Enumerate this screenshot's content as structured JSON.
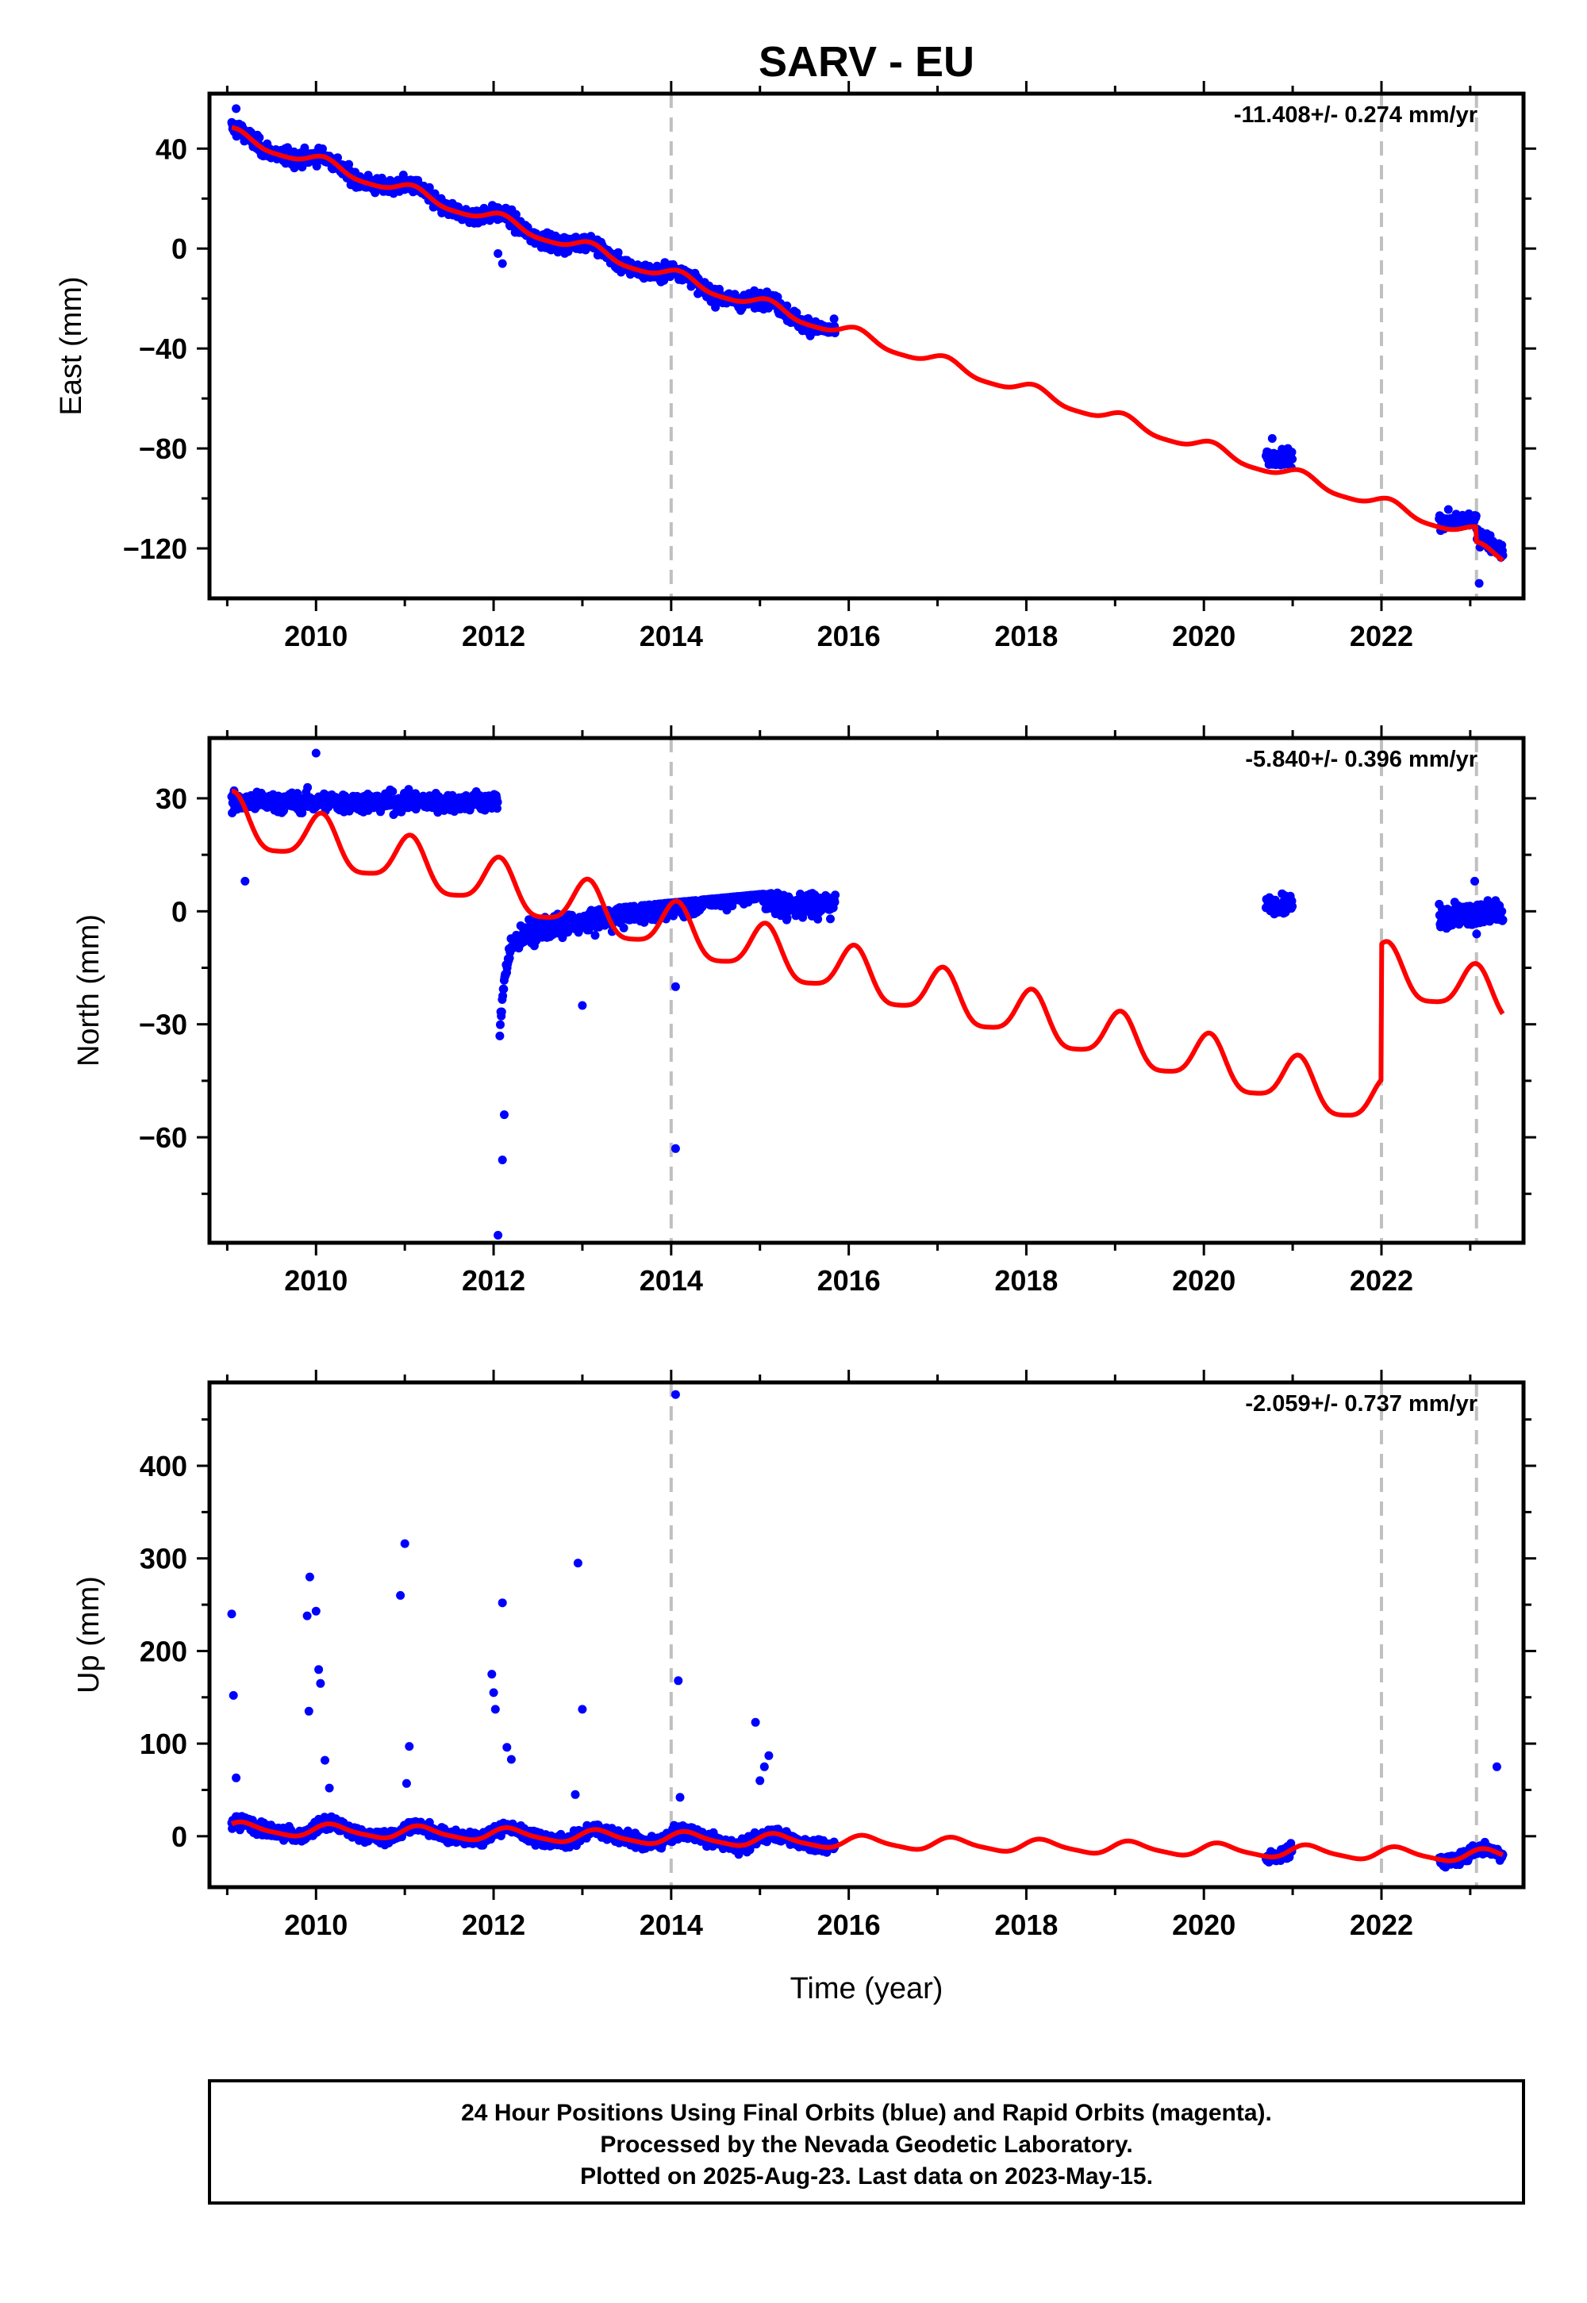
{
  "title": "SARV - EU",
  "xlabel": "Time (year)",
  "footer": {
    "lines": [
      "24 Hour Positions Using Final Orbits (blue) and Rapid Orbits (magenta).",
      "Processed by the Nevada Geodetic Laboratory.",
      "Plotted on 2025-Aug-23. Last data on 2023-May-15."
    ]
  },
  "colors": {
    "data_points": "#0000ff",
    "model_line": "#ff0000",
    "event_lines": "#c0c0c0",
    "frame": "#000000"
  },
  "chart_data": [
    {
      "type": "scatter",
      "panel": "east",
      "ylabel": "East (mm)",
      "rate_text": "-11.408+/- 0.274 mm/yr",
      "xlim": [
        2008.8,
        2023.6
      ],
      "ylim": [
        -140,
        62
      ],
      "xticks": [
        2010,
        2012,
        2014,
        2016,
        2018,
        2020,
        2022
      ],
      "yticks": [
        40,
        0,
        -40,
        -80,
        -120
      ],
      "yticks_minor": [
        20,
        -20,
        -60,
        -100
      ],
      "event_lines": [
        2014.0,
        2022.0,
        2023.07
      ],
      "data_segments": [
        [
          2009.05,
          2015.85
        ],
        [
          2020.7,
          2021.0
        ],
        [
          2022.65,
          2023.37
        ]
      ],
      "model": {
        "slope": -11.408,
        "ref_year": 2009.05,
        "intercept": 45.5,
        "annual_amp": 2.5,
        "annual_phase": 1.0,
        "semiannual_amp": 0.6,
        "semiannual_phase": 0.3,
        "offsets": [
          {
            "t": 2023.07,
            "dy": -6
          }
        ]
      },
      "noise_sd": 2.2,
      "segment_biases": [
        0,
        5,
        3
      ],
      "spikes": [
        {
          "t": 2009.1,
          "v": 56
        },
        {
          "t": 2012.1,
          "v": -6
        },
        {
          "t": 2012.05,
          "v": -2
        },
        {
          "t": 2020.77,
          "v": -76
        },
        {
          "t": 2023.1,
          "v": -134
        }
      ]
    },
    {
      "type": "scatter",
      "panel": "north",
      "ylabel": "North (mm)",
      "rate_text": "-5.840+/- 0.396 mm/yr",
      "xlim": [
        2008.8,
        2023.6
      ],
      "ylim": [
        -88,
        46
      ],
      "xticks": [
        2010,
        2012,
        2014,
        2016,
        2018,
        2020,
        2022
      ],
      "yticks": [
        30,
        0,
        -30,
        -60
      ],
      "yticks_minor": [
        15,
        -15,
        -45,
        -75
      ],
      "event_lines": [
        2014.0,
        2022.0,
        2023.07
      ],
      "data_segments": [
        [
          2009.05,
          2012.05
        ],
        [
          2012.07,
          2015.85
        ],
        [
          2020.7,
          2021.0
        ],
        [
          2022.65,
          2023.37
        ]
      ],
      "model": {
        "slope": -5.84,
        "ref_year": 2009.05,
        "intercept": 24.0,
        "annual_amp": 6.5,
        "annual_phase": 1.2,
        "semiannual_amp": 1.5,
        "semiannual_phase": 0.6,
        "offsets": [
          {
            "t": 2022.0,
            "dy": 36
          }
        ]
      },
      "noise_sd": 2.0,
      "custom": "north",
      "spikes": [
        {
          "t": 2009.2,
          "v": 8
        },
        {
          "t": 2010.0,
          "v": 42
        },
        {
          "t": 2012.05,
          "v": -86
        },
        {
          "t": 2012.1,
          "v": -66
        },
        {
          "t": 2012.12,
          "v": -54
        },
        {
          "t": 2014.05,
          "v": -63
        },
        {
          "t": 2014.05,
          "v": -20
        },
        {
          "t": 2013.0,
          "v": -25
        },
        {
          "t": 2023.05,
          "v": 8
        }
      ]
    },
    {
      "type": "scatter",
      "panel": "up",
      "ylabel": "Up (mm)",
      "rate_text": "-2.059+/- 0.737 mm/yr",
      "xlim": [
        2008.8,
        2023.6
      ],
      "ylim": [
        -55,
        490
      ],
      "xticks": [
        2010,
        2012,
        2014,
        2016,
        2018,
        2020,
        2022
      ],
      "yticks": [
        400,
        300,
        200,
        100,
        0
      ],
      "yticks_minor": [
        450,
        350,
        250,
        150,
        50
      ],
      "event_lines": [
        2014.0,
        2022.0,
        2023.07
      ],
      "data_segments": [
        [
          2009.05,
          2015.85
        ],
        [
          2020.7,
          2021.0
        ],
        [
          2022.65,
          2023.37
        ]
      ],
      "model": {
        "slope": -2.059,
        "ref_year": 2009.05,
        "intercept": 8.0,
        "annual_amp": 6.5,
        "annual_phase": 0.4,
        "semiannual_amp": 1.5,
        "semiannual_phase": 0.2,
        "offsets": []
      },
      "noise_sd": 5.0,
      "spikes": [
        {
          "t": 2009.05,
          "v": 240
        },
        {
          "t": 2009.07,
          "v": 152
        },
        {
          "t": 2009.1,
          "v": 63
        },
        {
          "t": 2009.9,
          "v": 238
        },
        {
          "t": 2009.93,
          "v": 280
        },
        {
          "t": 2010.0,
          "v": 243
        },
        {
          "t": 2009.92,
          "v": 135
        },
        {
          "t": 2010.03,
          "v": 180
        },
        {
          "t": 2010.05,
          "v": 165
        },
        {
          "t": 2010.1,
          "v": 82
        },
        {
          "t": 2010.15,
          "v": 52
        },
        {
          "t": 2010.95,
          "v": 260
        },
        {
          "t": 2011.0,
          "v": 316
        },
        {
          "t": 2011.05,
          "v": 97
        },
        {
          "t": 2011.02,
          "v": 57
        },
        {
          "t": 2011.98,
          "v": 175
        },
        {
          "t": 2012.0,
          "v": 155
        },
        {
          "t": 2012.02,
          "v": 137
        },
        {
          "t": 2012.1,
          "v": 252
        },
        {
          "t": 2012.15,
          "v": 96
        },
        {
          "t": 2012.2,
          "v": 83
        },
        {
          "t": 2012.95,
          "v": 295
        },
        {
          "t": 2013.0,
          "v": 137
        },
        {
          "t": 2012.92,
          "v": 45
        },
        {
          "t": 2014.05,
          "v": 477
        },
        {
          "t": 2014.08,
          "v": 168
        },
        {
          "t": 2014.1,
          "v": 42
        },
        {
          "t": 2014.95,
          "v": 123
        },
        {
          "t": 2015.1,
          "v": 87
        },
        {
          "t": 2015.05,
          "v": 75
        },
        {
          "t": 2015.0,
          "v": 60
        },
        {
          "t": 2023.3,
          "v": 75
        }
      ]
    }
  ]
}
